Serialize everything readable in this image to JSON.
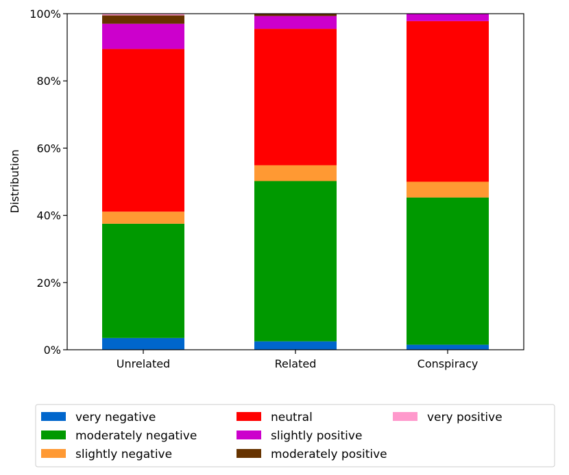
{
  "chart_data": {
    "type": "bar",
    "stacked": true,
    "categories": [
      "Unrelated",
      "Related",
      "Conspiracy"
    ],
    "ylabel": "Distribution",
    "xlabel": "",
    "ylim": [
      0,
      100
    ],
    "yticks": [
      "0%",
      "20%",
      "40%",
      "60%",
      "80%",
      "100%"
    ],
    "grid": false,
    "legend_position": "bottom",
    "series": [
      {
        "name": "very negative",
        "color": "#0066cc",
        "values": [
          3.5,
          2.5,
          1.5
        ]
      },
      {
        "name": "moderately negative",
        "color": "#009900",
        "values": [
          34.0,
          47.7,
          43.8
        ]
      },
      {
        "name": "slightly negative",
        "color": "#ff9933",
        "values": [
          3.6,
          4.7,
          4.7
        ]
      },
      {
        "name": "neutral",
        "color": "#ff0000",
        "values": [
          48.4,
          40.6,
          47.8
        ]
      },
      {
        "name": "slightly positive",
        "color": "#cc00cc",
        "values": [
          7.5,
          3.8,
          2.2
        ]
      },
      {
        "name": "moderately positive",
        "color": "#663300",
        "values": [
          2.5,
          0.7,
          0.0
        ]
      },
      {
        "name": "very positive",
        "color": "#ff99cc",
        "values": [
          0.5,
          0.0,
          0.0
        ]
      }
    ]
  }
}
